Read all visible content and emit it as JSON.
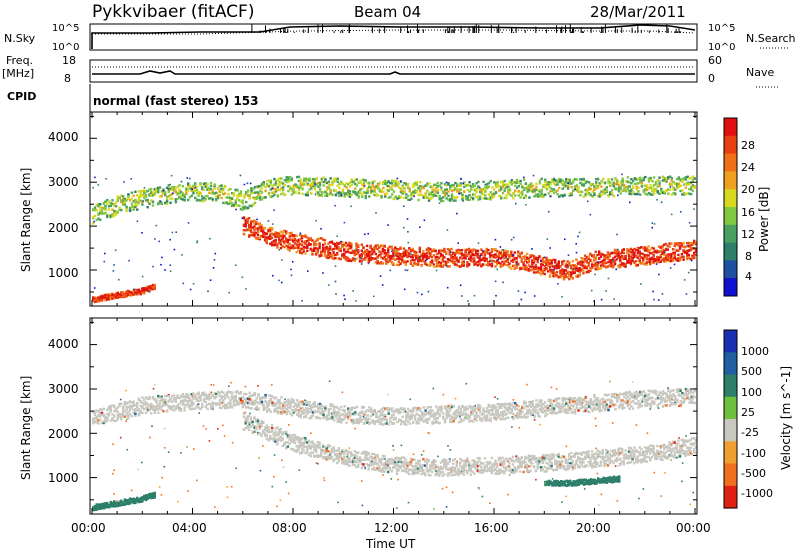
{
  "header": {
    "radar": "Pykkvibaer (fitACF)",
    "beam": "Beam 04",
    "date": "28/Mar/2011"
  },
  "top_panels": {
    "nsky_label": "N.Sky",
    "nsearch_label": "N.Search",
    "nsky_ticks": [
      "10^5",
      "10^0"
    ],
    "nsky_right_ticks": [
      "10^5",
      "10^0"
    ],
    "freq_label_1": "Freq.",
    "freq_label_2": "[MHz]",
    "freq_ticks": [
      "18",
      "8"
    ],
    "nave_label": "Nave",
    "nave_ticks": [
      "60",
      "0"
    ],
    "cpid_label": "CPID",
    "cpid_text": "normal (fast stereo) 153"
  },
  "power_panel": {
    "ylabel": "Slant Range [km]",
    "yticks": [
      "4000",
      "3000",
      "2000",
      "1000"
    ],
    "colorbar_label": "Power [dB]",
    "colorbar_ticks": [
      "28",
      "24",
      "20",
      "16",
      "12",
      "8",
      "4"
    ],
    "colors": [
      "#1010d0",
      "#2050a0",
      "#2d7f6a",
      "#4aa060",
      "#80c840",
      "#d8d820",
      "#f0a020",
      "#f07018",
      "#e84010",
      "#e01010"
    ]
  },
  "velocity_panel": {
    "ylabel": "Slant Range [km]",
    "yticks": [
      "4000",
      "3000",
      "2000",
      "1000"
    ],
    "colorbar_label": "Velocity [m s^-1]",
    "colorbar_ticks": [
      "1000",
      "500",
      "100",
      "25",
      "-25",
      "-100",
      "-500",
      "-1000"
    ],
    "colors": [
      "#1830b0",
      "#2060a0",
      "#2d7f6a",
      "#70c040",
      "#c8c8c0",
      "#f0a030",
      "#f07020",
      "#e02010"
    ]
  },
  "xaxis": {
    "ticks": [
      "00:00",
      "04:00",
      "08:00",
      "12:00",
      "16:00",
      "20:00",
      "00:00"
    ],
    "label": "Time UT"
  },
  "chart_data": [
    {
      "type": "heatmap",
      "title": "Pykkvibaer (fitACF) Beam 04 28/Mar/2011",
      "xlabel": "Time UT",
      "ylabel": "Slant Range [km]",
      "xlim": [
        0,
        24
      ],
      "ylim": [
        180,
        4600
      ],
      "colorbar": {
        "label": "Power [dB]",
        "range": [
          0,
          30
        ]
      },
      "bands": [
        {
          "name": "",
          "x": [
            0,
            1,
            2,
            3,
            4,
            5,
            6,
            7,
            8,
            10,
            12,
            14,
            16,
            18,
            19,
            20,
            22,
            24
          ],
          "y": [
            2300,
            2500,
            2650,
            2750,
            2800,
            2800,
            2600,
            2900,
            2950,
            2900,
            2850,
            2800,
            2850,
            2900,
            2900,
            2900,
            2950,
            2950
          ],
          "value": 14
        },
        {
          "name": "",
          "x": [
            6,
            7,
            8,
            10,
            12,
            14,
            16,
            17,
            18,
            19,
            20,
            22,
            24
          ],
          "y": [
            2050,
            1800,
            1650,
            1450,
            1350,
            1300,
            1300,
            1250,
            1100,
            1000,
            1250,
            1350,
            1500
          ],
          "value": 26
        },
        {
          "name": "",
          "x": [
            0,
            1,
            2,
            2.5
          ],
          "y": [
            350,
            450,
            550,
            650
          ],
          "value": 25
        }
      ]
    },
    {
      "type": "heatmap",
      "xlabel": "Time UT",
      "ylabel": "Slant Range [km]",
      "xlim": [
        0,
        24
      ],
      "ylim": [
        180,
        4600
      ],
      "colorbar": {
        "label": "Velocity [m s^-1]",
        "ticks": [
          1000,
          500,
          100,
          25,
          -25,
          -100,
          -500,
          -1000
        ]
      },
      "bands": [
        {
          "name": "",
          "x": [
            0,
            2,
            4,
            6,
            8,
            10,
            12,
            14,
            16,
            18,
            20,
            22,
            24
          ],
          "y": [
            2350,
            2650,
            2750,
            2800,
            2600,
            2450,
            2400,
            2450,
            2500,
            2600,
            2700,
            2800,
            2850
          ],
          "value": 0
        },
        {
          "name": "",
          "x": [
            6,
            7,
            8,
            10,
            12,
            14,
            16,
            18,
            20,
            22,
            24
          ],
          "y": [
            2300,
            2050,
            1800,
            1500,
            1300,
            1250,
            1300,
            1350,
            1450,
            1550,
            1750
          ],
          "value": 0
        },
        {
          "name": "",
          "x": [
            18,
            19,
            20,
            21
          ],
          "y": [
            900,
            900,
            950,
            1000
          ],
          "value": 300
        },
        {
          "name": "",
          "x": [
            0,
            1,
            2,
            2.5
          ],
          "y": [
            350,
            450,
            550,
            650
          ],
          "value": 120
        }
      ]
    }
  ]
}
